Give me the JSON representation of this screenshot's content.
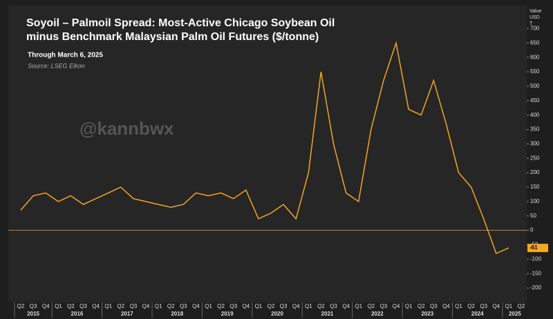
{
  "chart_data": {
    "type": "line",
    "title_lines": [
      "Soyoil – Palmoil Spread: Most-Active Chicago Soybean Oil",
      "minus Benchmark Malaysian Palm Oil Futures ($/tonne)"
    ],
    "subtitle": "Through March 6, 2025",
    "source": "Source: LSEG Eikon",
    "watermark": "@kannbwx",
    "y_axis_label": [
      "Value",
      "USD",
      "T"
    ],
    "x": [
      "2015 Q2",
      "2015 Q3",
      "2015 Q4",
      "2016 Q1",
      "2016 Q2",
      "2016 Q3",
      "2016 Q4",
      "2017 Q1",
      "2017 Q2",
      "2017 Q3",
      "2017 Q4",
      "2018 Q1",
      "2018 Q2",
      "2018 Q3",
      "2018 Q4",
      "2019 Q1",
      "2019 Q2",
      "2019 Q3",
      "2019 Q4",
      "2020 Q1",
      "2020 Q2",
      "2020 Q3",
      "2020 Q4",
      "2021 Q1",
      "2021 Q2",
      "2021 Q3",
      "2021 Q4",
      "2022 Q1",
      "2022 Q2",
      "2022 Q3",
      "2022 Q4",
      "2023 Q1",
      "2023 Q2",
      "2023 Q3",
      "2023 Q4",
      "2024 Q1",
      "2024 Q2",
      "2024 Q3",
      "2024 Q4",
      "2025 Q1",
      "2025 Q2"
    ],
    "quarter_labels": [
      "Q2",
      "Q3",
      "Q4",
      "Q1",
      "Q2",
      "Q3",
      "Q4",
      "Q1",
      "Q2",
      "Q3",
      "Q4",
      "Q1",
      "Q2",
      "Q3",
      "Q4",
      "Q1",
      "Q2",
      "Q3",
      "Q4",
      "Q1",
      "Q2",
      "Q3",
      "Q4",
      "Q1",
      "Q2",
      "Q3",
      "Q4",
      "Q1",
      "Q2",
      "Q3",
      "Q4",
      "Q1",
      "Q2",
      "Q3",
      "Q4",
      "Q1",
      "Q2",
      "Q3",
      "Q4",
      "Q1",
      "Q2"
    ],
    "years": [
      "2015",
      "2016",
      "2017",
      "2018",
      "2019",
      "2020",
      "2021",
      "2022",
      "2023",
      "2024",
      "2025"
    ],
    "values": [
      70,
      120,
      130,
      100,
      120,
      90,
      110,
      130,
      150,
      110,
      100,
      90,
      80,
      90,
      130,
      120,
      130,
      110,
      140,
      40,
      60,
      90,
      40,
      200,
      550,
      300,
      130,
      100,
      350,
      520,
      650,
      420,
      400,
      520,
      370,
      200,
      150,
      40,
      -80,
      -61,
      null
    ],
    "color": "#f5a623",
    "ylim": [
      -250,
      780
    ],
    "yticks": [
      -200,
      -150,
      -100,
      -50,
      0,
      50,
      100,
      150,
      200,
      250,
      300,
      350,
      400,
      450,
      500,
      550,
      600,
      650,
      700
    ]
  }
}
